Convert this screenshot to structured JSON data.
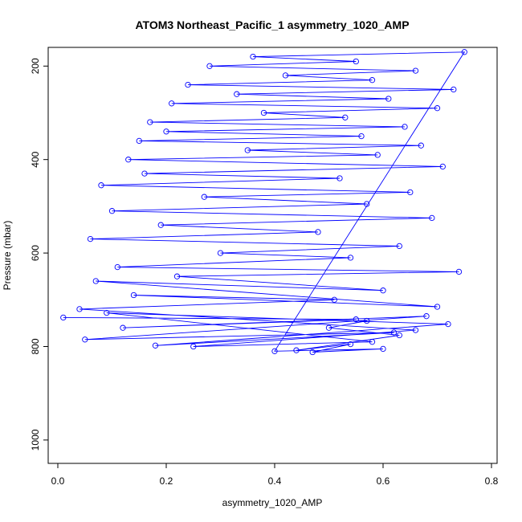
{
  "chart_data": {
    "type": "line",
    "title": "ATOM3 Northeast_Pacific_1 asymmetry_1020_AMP",
    "xlabel": "asymmetry_1020_AMP",
    "ylabel": "Pressure (mbar)",
    "xlim": [
      0.0,
      0.8
    ],
    "ylim": [
      1050,
      160
    ],
    "y_reversed": true,
    "grid": false,
    "legend": "none",
    "x_ticks": [
      0.0,
      0.2,
      0.4,
      0.6,
      0.8
    ],
    "x_tick_labels": [
      "0.0",
      "0.2",
      "0.4",
      "0.6",
      "0.8"
    ],
    "y_ticks": [
      200,
      400,
      600,
      800,
      1000
    ],
    "y_tick_labels": [
      "200",
      "400",
      "600",
      "800",
      "1000"
    ],
    "marker": "open-circle",
    "series": [
      {
        "color": "#0000ff",
        "x": [
          0.01,
          0.55,
          0.12,
          0.68,
          0.05,
          0.62,
          0.18,
          0.72,
          0.09,
          0.58,
          0.25,
          0.66,
          0.04,
          0.51,
          0.14,
          0.7,
          0.07,
          0.6,
          0.22,
          0.74,
          0.11,
          0.54,
          0.3,
          0.63,
          0.06,
          0.48,
          0.19,
          0.69,
          0.1,
          0.57,
          0.27,
          0.65,
          0.08,
          0.52,
          0.16,
          0.71,
          0.13,
          0.59,
          0.35,
          0.67,
          0.15,
          0.56,
          0.2,
          0.64,
          0.17,
          0.53,
          0.38,
          0.7,
          0.21,
          0.61,
          0.33,
          0.73,
          0.24,
          0.58,
          0.42,
          0.66,
          0.28,
          0.55,
          0.36,
          0.75,
          0.4,
          0.6,
          0.47,
          0.54,
          0.44,
          0.63,
          0.5,
          0.57
        ],
        "y": [
          738,
          742,
          760,
          735,
          785,
          770,
          798,
          752,
          728,
          790,
          800,
          765,
          720,
          700,
          690,
          715,
          660,
          680,
          650,
          640,
          630,
          610,
          600,
          585,
          570,
          555,
          540,
          525,
          510,
          495,
          480,
          470,
          455,
          440,
          430,
          415,
          400,
          390,
          380,
          370,
          360,
          350,
          340,
          330,
          320,
          310,
          300,
          290,
          280,
          270,
          260,
          250,
          240,
          230,
          220,
          210,
          200,
          190,
          180,
          170,
          810,
          805,
          812,
          795,
          808,
          776,
          760,
          745
        ]
      }
    ]
  }
}
